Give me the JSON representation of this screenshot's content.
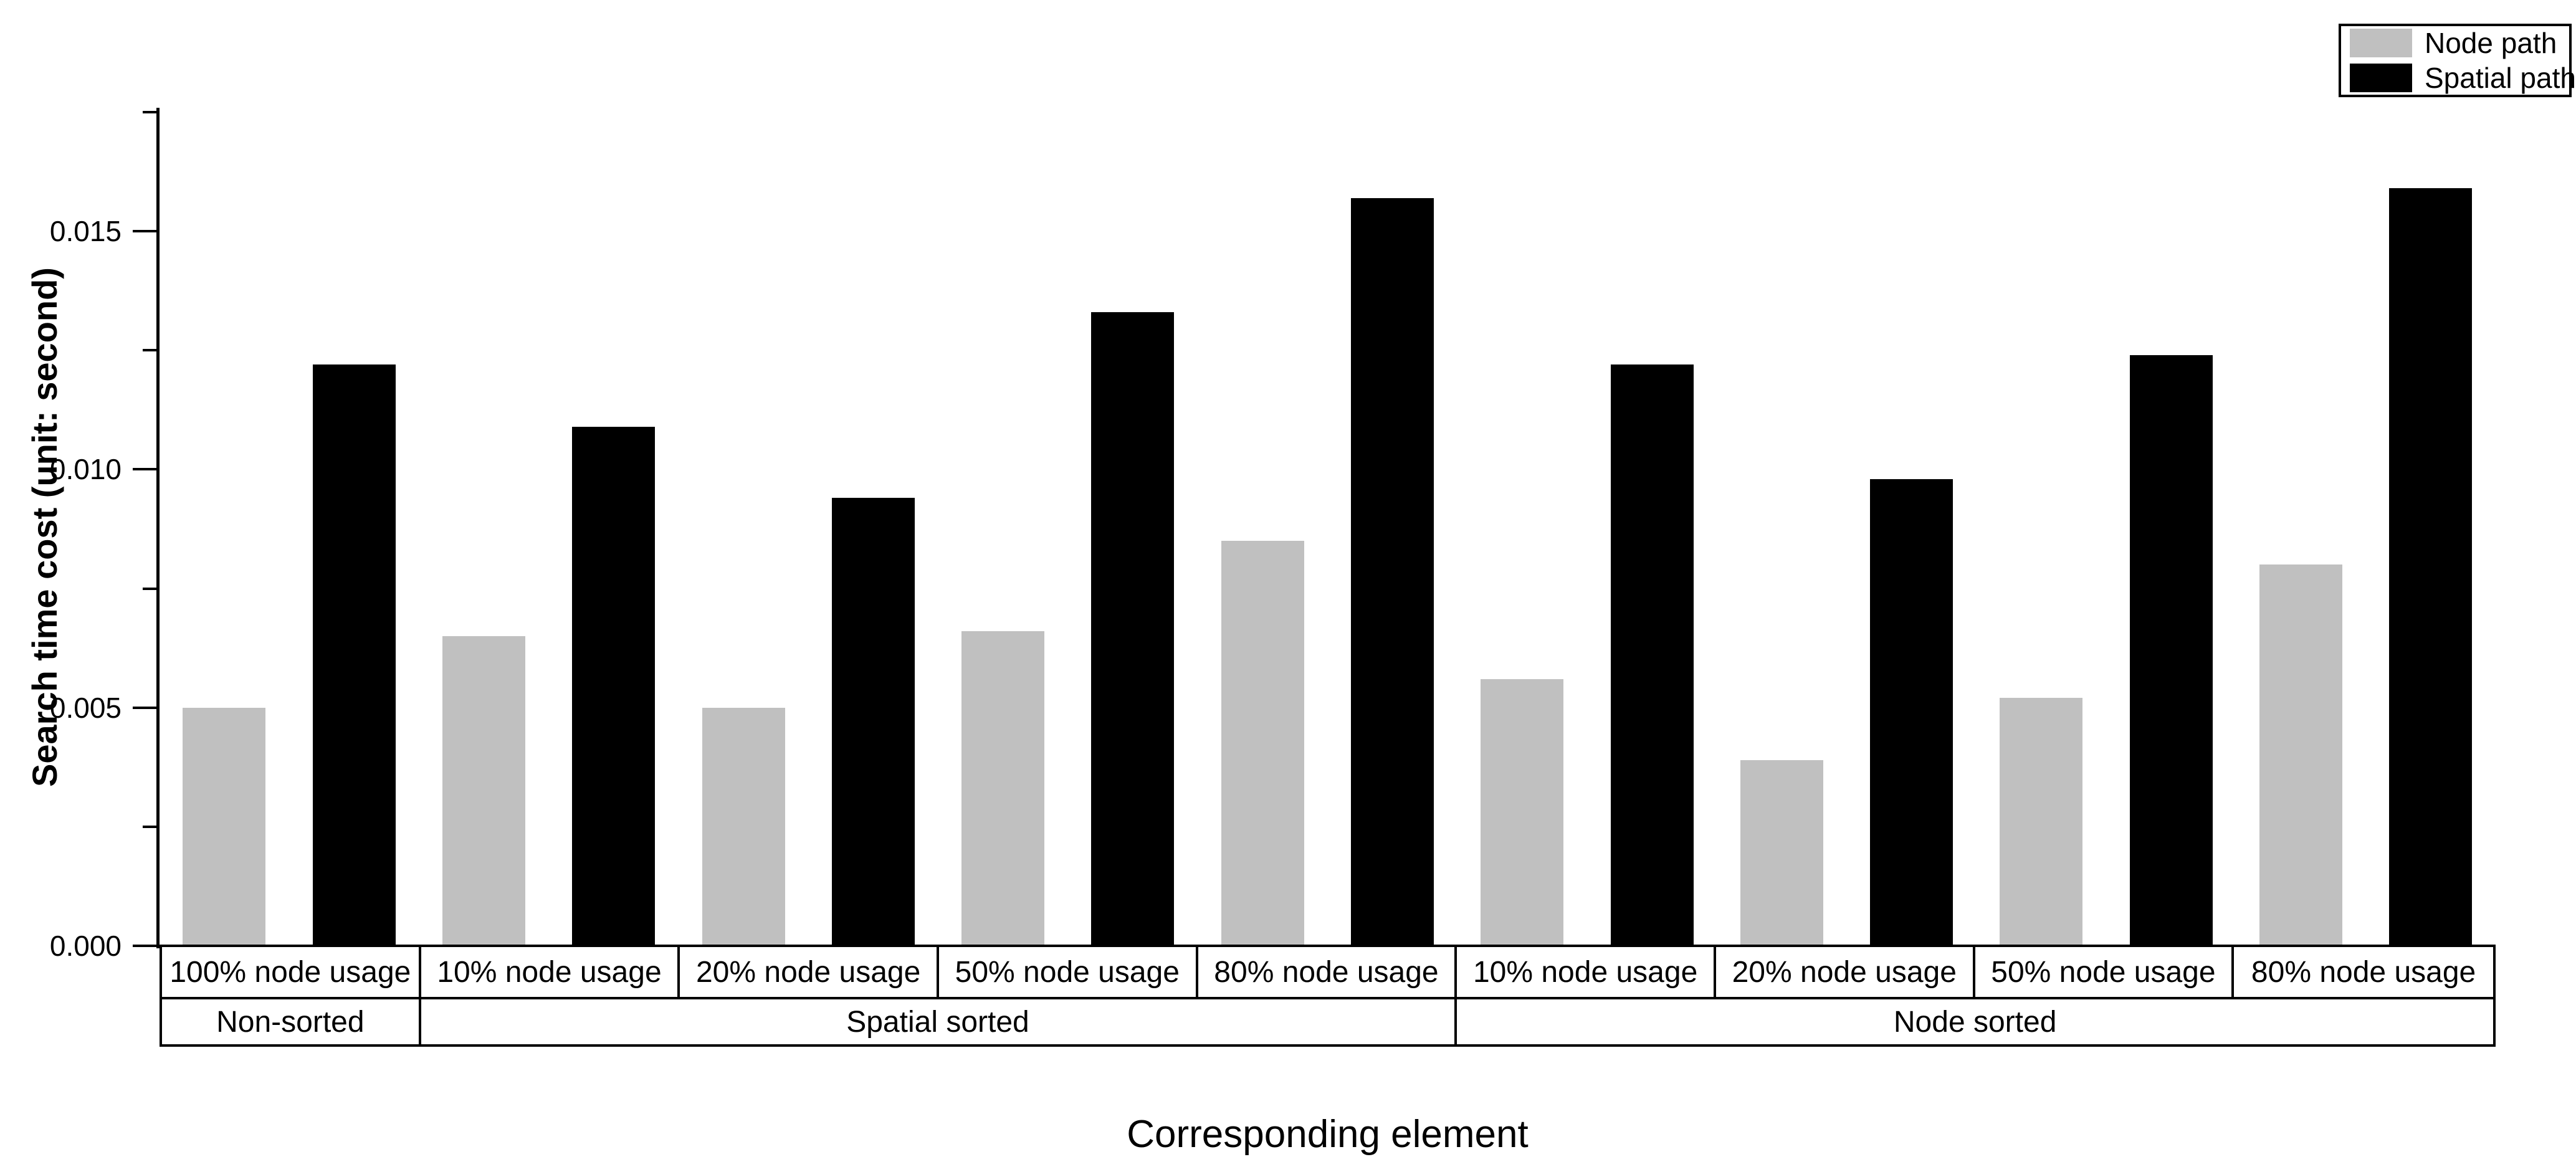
{
  "chart_data": {
    "type": "bar",
    "title": "",
    "xlabel": "Corresponding element",
    "ylabel": "Search time cost (unit: second)",
    "ylim": [
      0,
      0.0175
    ],
    "grid": false,
    "legend_position": "top-right",
    "yticks": [
      {
        "value": 0.0,
        "label": "0.000",
        "major": true
      },
      {
        "value": 0.0025,
        "label": "",
        "major": false
      },
      {
        "value": 0.005,
        "label": "0.005",
        "major": true
      },
      {
        "value": 0.0075,
        "label": "",
        "major": false
      },
      {
        "value": 0.01,
        "label": "0.010",
        "major": true
      },
      {
        "value": 0.0125,
        "label": "",
        "major": false
      },
      {
        "value": 0.015,
        "label": "0.015",
        "major": true
      },
      {
        "value": 0.0175,
        "label": "",
        "major": false
      }
    ],
    "categories": [
      "100% node usage",
      "10% node usage",
      "20% node usage",
      "50% node usage",
      "80% node usage",
      "10% node usage",
      "20% node usage",
      "50% node usage",
      "80% node usage"
    ],
    "group_labels": [
      {
        "label": "Non-sorted",
        "span": 1
      },
      {
        "label": "Spatial sorted",
        "span": 4
      },
      {
        "label": "Node sorted",
        "span": 4
      }
    ],
    "series": [
      {
        "name": "Node path",
        "color": "#c0c0c0",
        "values": [
          0.005,
          0.0065,
          0.005,
          0.0066,
          0.0085,
          0.0056,
          0.0039,
          0.0052,
          0.008
        ]
      },
      {
        "name": "Spatial path",
        "color": "#000000",
        "values": [
          0.0122,
          0.0109,
          0.0094,
          0.0133,
          0.0157,
          0.0122,
          0.0098,
          0.0124,
          0.0159
        ]
      }
    ]
  },
  "colors": {
    "background": "#ffffff",
    "axis": "#000000",
    "node_path_bar": "#c0c0c0",
    "spatial_path_bar": "#000000"
  }
}
